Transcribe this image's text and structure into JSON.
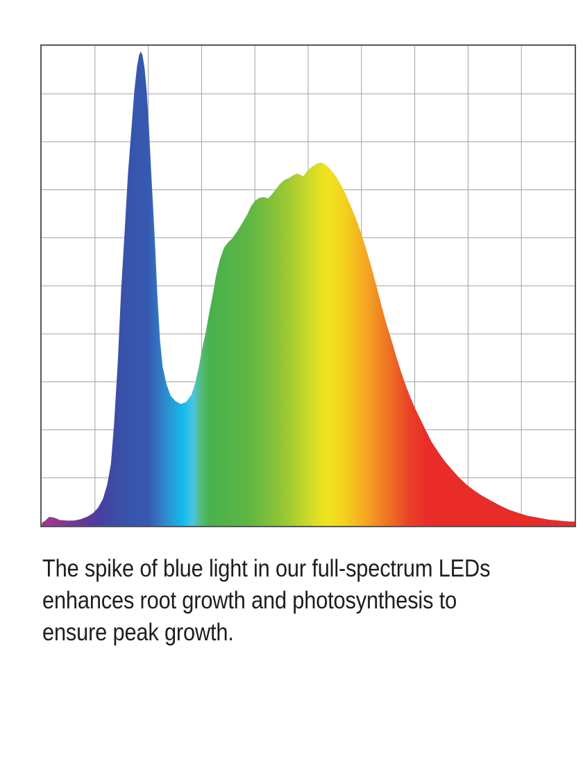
{
  "page": {
    "background": "#ffffff"
  },
  "caption": {
    "text": "The spike of blue light in our full-spectrum LEDs enhances root growth and photosynthesis to ensure peak growth.",
    "lines": [
      "The spike of blue light in our full-spectrum LEDs",
      "enhances root growth and photosynthesis to",
      "ensure peak growth."
    ],
    "color": "#1d1d1d"
  },
  "chart_data": {
    "type": "area",
    "title": "",
    "xlabel": "",
    "ylabel": "",
    "legend": false,
    "grid": true,
    "axes_note": "no tick labels visible; values given in grid-cell units (10x10 grid)",
    "x_axis": {
      "min": 0,
      "max": 10,
      "gridline_divisions": 10,
      "tick_labels": []
    },
    "y_axis": {
      "min": 0,
      "max": 10,
      "gridline_divisions": 10,
      "tick_labels": []
    },
    "frame_color": "#54565a",
    "grid_color": "#9d9fa2",
    "series": [
      {
        "name": "full-spectrum LED spectral power distribution",
        "fill": "rainbow-spectrum-gradient",
        "points": [
          [
            0.01,
            0.07
          ],
          [
            0.07,
            0.11
          ],
          [
            0.14,
            0.19
          ],
          [
            0.24,
            0.17
          ],
          [
            0.35,
            0.12
          ],
          [
            0.48,
            0.11
          ],
          [
            0.61,
            0.11
          ],
          [
            0.74,
            0.14
          ],
          [
            0.87,
            0.2
          ],
          [
            0.97,
            0.27
          ],
          [
            1.06,
            0.38
          ],
          [
            1.15,
            0.56
          ],
          [
            1.23,
            0.86
          ],
          [
            1.3,
            1.29
          ],
          [
            1.36,
            2.13
          ],
          [
            1.43,
            3.43
          ],
          [
            1.49,
            4.88
          ],
          [
            1.56,
            6.18
          ],
          [
            1.62,
            7.34
          ],
          [
            1.69,
            8.35
          ],
          [
            1.74,
            9.07
          ],
          [
            1.79,
            9.58
          ],
          [
            1.83,
            9.81
          ],
          [
            1.86,
            9.88
          ],
          [
            1.89,
            9.81
          ],
          [
            1.93,
            9.55
          ],
          [
            1.97,
            9.07
          ],
          [
            2.01,
            8.35
          ],
          [
            2.06,
            7.27
          ],
          [
            2.12,
            6.04
          ],
          [
            2.17,
            4.81
          ],
          [
            2.22,
            3.87
          ],
          [
            2.27,
            3.32
          ],
          [
            2.34,
            2.96
          ],
          [
            2.42,
            2.71
          ],
          [
            2.51,
            2.6
          ],
          [
            2.61,
            2.54
          ],
          [
            2.71,
            2.58
          ],
          [
            2.81,
            2.73
          ],
          [
            2.88,
            2.97
          ],
          [
            2.95,
            3.32
          ],
          [
            3.01,
            3.68
          ],
          [
            3.08,
            4.04
          ],
          [
            3.14,
            4.42
          ],
          [
            3.21,
            4.81
          ],
          [
            3.27,
            5.2
          ],
          [
            3.34,
            5.53
          ],
          [
            3.42,
            5.79
          ],
          [
            3.5,
            5.91
          ],
          [
            3.57,
            5.98
          ],
          [
            3.67,
            6.14
          ],
          [
            3.76,
            6.3
          ],
          [
            3.85,
            6.47
          ],
          [
            3.93,
            6.66
          ],
          [
            4.0,
            6.77
          ],
          [
            4.08,
            6.83
          ],
          [
            4.17,
            6.85
          ],
          [
            4.25,
            6.82
          ],
          [
            4.3,
            6.88
          ],
          [
            4.38,
            6.99
          ],
          [
            4.47,
            7.12
          ],
          [
            4.56,
            7.21
          ],
          [
            4.65,
            7.25
          ],
          [
            4.73,
            7.31
          ],
          [
            4.8,
            7.34
          ],
          [
            4.86,
            7.31
          ],
          [
            4.91,
            7.28
          ],
          [
            4.99,
            7.4
          ],
          [
            5.07,
            7.48
          ],
          [
            5.15,
            7.54
          ],
          [
            5.23,
            7.57
          ],
          [
            5.31,
            7.54
          ],
          [
            5.38,
            7.47
          ],
          [
            5.46,
            7.37
          ],
          [
            5.54,
            7.25
          ],
          [
            5.62,
            7.09
          ],
          [
            5.7,
            6.92
          ],
          [
            5.77,
            6.73
          ],
          [
            5.85,
            6.53
          ],
          [
            5.93,
            6.3
          ],
          [
            6.01,
            6.04
          ],
          [
            6.1,
            5.72
          ],
          [
            6.19,
            5.37
          ],
          [
            6.28,
            5.0
          ],
          [
            6.37,
            4.61
          ],
          [
            6.46,
            4.24
          ],
          [
            6.56,
            3.88
          ],
          [
            6.65,
            3.54
          ],
          [
            6.74,
            3.22
          ],
          [
            6.83,
            2.93
          ],
          [
            6.92,
            2.67
          ],
          [
            7.01,
            2.44
          ],
          [
            7.12,
            2.19
          ],
          [
            7.22,
            1.96
          ],
          [
            7.32,
            1.74
          ],
          [
            7.44,
            1.54
          ],
          [
            7.56,
            1.35
          ],
          [
            7.69,
            1.18
          ],
          [
            7.82,
            1.02
          ],
          [
            7.96,
            0.87
          ],
          [
            8.11,
            0.74
          ],
          [
            8.26,
            0.63
          ],
          [
            8.42,
            0.53
          ],
          [
            8.59,
            0.43
          ],
          [
            8.76,
            0.34
          ],
          [
            8.94,
            0.27
          ],
          [
            9.12,
            0.21
          ],
          [
            9.32,
            0.17
          ],
          [
            9.51,
            0.13
          ],
          [
            9.71,
            0.11
          ],
          [
            9.9,
            0.09
          ],
          [
            10.0,
            0.09
          ]
        ]
      }
    ],
    "gradient_stops": [
      {
        "offset": 0.0,
        "color": "#8f2e8d"
      },
      {
        "offset": 0.013,
        "color": "#a1378f"
      },
      {
        "offset": 0.065,
        "color": "#713798"
      },
      {
        "offset": 0.105,
        "color": "#4b3d9e"
      },
      {
        "offset": 0.15,
        "color": "#3852a9"
      },
      {
        "offset": 0.2,
        "color": "#3659b1"
      },
      {
        "offset": 0.235,
        "color": "#2e8ecf"
      },
      {
        "offset": 0.264,
        "color": "#12b9ee"
      },
      {
        "offset": 0.285,
        "color": "#4cc5e2"
      },
      {
        "offset": 0.298,
        "color": "#52bb7e"
      },
      {
        "offset": 0.315,
        "color": "#47b14c"
      },
      {
        "offset": 0.39,
        "color": "#5eb643"
      },
      {
        "offset": 0.455,
        "color": "#96c735"
      },
      {
        "offset": 0.508,
        "color": "#d5dc26"
      },
      {
        "offset": 0.535,
        "color": "#f0e51d"
      },
      {
        "offset": 0.572,
        "color": "#f5cd1f"
      },
      {
        "offset": 0.61,
        "color": "#f3a521"
      },
      {
        "offset": 0.65,
        "color": "#ee7323"
      },
      {
        "offset": 0.69,
        "color": "#e94127"
      },
      {
        "offset": 0.722,
        "color": "#e92c28"
      },
      {
        "offset": 1.0,
        "color": "#e92c28"
      }
    ],
    "annotations": [
      "narrow blue spike near left (peak ~9.9 of 10 grid units)",
      "broad green-to-red hump (peak ~7.6 of 10 grid units)",
      "small magenta bump at far left, long red tail to the right"
    ]
  }
}
